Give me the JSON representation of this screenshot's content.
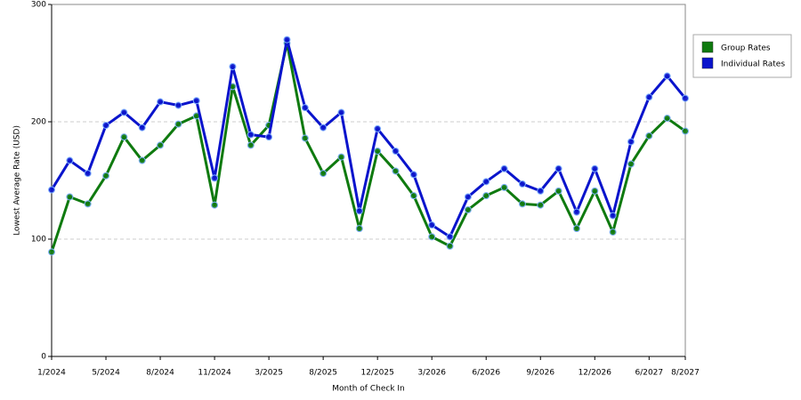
{
  "chart_data": {
    "type": "line",
    "categories": [
      "1/2024",
      null,
      null,
      "5/2024",
      null,
      null,
      "8/2024",
      null,
      null,
      "11/2024",
      null,
      null,
      "3/2025",
      null,
      null,
      "8/2025",
      null,
      null,
      "12/2025",
      null,
      null,
      "3/2026",
      null,
      null,
      "6/2026",
      null,
      null,
      "9/2026",
      null,
      null,
      "12/2026",
      null,
      null,
      "6/2027",
      null,
      "8/2027"
    ],
    "series": [
      {
        "name": "Group Rates",
        "color": "#0f7a0f",
        "values": [
          89,
          136,
          130,
          154,
          187,
          167,
          180,
          198,
          205,
          129,
          230,
          180,
          197,
          267,
          186,
          156,
          170,
          109,
          175,
          158,
          137,
          102,
          94,
          125,
          137,
          144,
          130,
          129,
          141,
          109,
          141,
          106,
          164,
          188,
          203,
          192
        ]
      },
      {
        "name": "Individual Rates",
        "color": "#0a14cc",
        "values": [
          142,
          167,
          156,
          197,
          208,
          195,
          217,
          214,
          218,
          152,
          247,
          189,
          187,
          270,
          212,
          195,
          208,
          124,
          194,
          175,
          155,
          112,
          102,
          136,
          149,
          160,
          147,
          141,
          160,
          123,
          160,
          120,
          183,
          221,
          239,
          220
        ]
      }
    ],
    "ylim": [
      0,
      300
    ],
    "yticks": [
      0,
      100,
      200,
      300
    ],
    "x_label": "Month of Check In",
    "y_label": "Lowest Average Rate (USD)",
    "grid": true,
    "legend": "right"
  }
}
